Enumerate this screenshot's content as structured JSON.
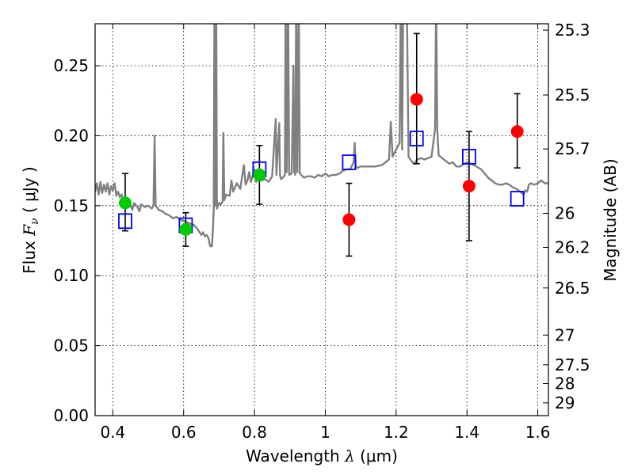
{
  "chart_data": {
    "type": "scatter",
    "title": "",
    "xlabel": {
      "prefix": "Wavelength  ",
      "symbol": "λ",
      "units": " (μm)"
    },
    "ylabel": {
      "prefix": "Flux  ",
      "symbol": "F",
      "subscript": "ν",
      "units": "  ( μJy )"
    },
    "y2label": "Magnitude (AB)",
    "xlim": [
      0.35,
      1.63
    ],
    "ylim": [
      0.0,
      0.28
    ],
    "grid": true,
    "x_ticks": [
      {
        "value": 0.4,
        "label": "0.4"
      },
      {
        "value": 0.6,
        "label": "0.6"
      },
      {
        "value": 0.8,
        "label": "0.8"
      },
      {
        "value": 1.0,
        "label": "1"
      },
      {
        "value": 1.2,
        "label": "1.2"
      },
      {
        "value": 1.4,
        "label": "1.4"
      },
      {
        "value": 1.6,
        "label": "1.6"
      }
    ],
    "y_ticks": [
      {
        "value": 0.0,
        "label": "0.00"
      },
      {
        "value": 0.05,
        "label": "0.05"
      },
      {
        "value": 0.1,
        "label": "0.10"
      },
      {
        "value": 0.15,
        "label": "0.15"
      },
      {
        "value": 0.2,
        "label": "0.20"
      },
      {
        "value": 0.25,
        "label": "0.25"
      }
    ],
    "mag_ticks": [
      {
        "value": 25.3,
        "label": "25.3"
      },
      {
        "value": 25.5,
        "label": "25.5"
      },
      {
        "value": 25.7,
        "label": "25.7"
      },
      {
        "value": 26.0,
        "label": "26"
      },
      {
        "value": 26.2,
        "label": "26.2"
      },
      {
        "value": 26.5,
        "label": "26.5"
      },
      {
        "value": 27.0,
        "label": "27"
      },
      {
        "value": 27.5,
        "label": "27.5"
      },
      {
        "value": 28.0,
        "label": "28"
      },
      {
        "value": 29.0,
        "label": "29"
      }
    ],
    "model_spectrum": {
      "color": "#808080",
      "points": [
        [
          0.35,
          0.16
        ],
        [
          0.355,
          0.166
        ],
        [
          0.36,
          0.158
        ],
        [
          0.365,
          0.167
        ],
        [
          0.37,
          0.159
        ],
        [
          0.375,
          0.165
        ],
        [
          0.38,
          0.16
        ],
        [
          0.385,
          0.166
        ],
        [
          0.39,
          0.158
        ],
        [
          0.395,
          0.164
        ],
        [
          0.4,
          0.161
        ],
        [
          0.405,
          0.166
        ],
        [
          0.41,
          0.157
        ],
        [
          0.415,
          0.16
        ],
        [
          0.42,
          0.156
        ],
        [
          0.425,
          0.158
        ],
        [
          0.43,
          0.153
        ],
        [
          0.44,
          0.151
        ],
        [
          0.45,
          0.15
        ],
        [
          0.455,
          0.147
        ],
        [
          0.46,
          0.152
        ],
        [
          0.47,
          0.149
        ],
        [
          0.475,
          0.146
        ],
        [
          0.48,
          0.151
        ],
        [
          0.49,
          0.149
        ],
        [
          0.5,
          0.15
        ],
        [
          0.51,
          0.148
        ],
        [
          0.515,
          0.15
        ],
        [
          0.518,
          0.2
        ],
        [
          0.521,
          0.15
        ],
        [
          0.53,
          0.147
        ],
        [
          0.54,
          0.146
        ],
        [
          0.55,
          0.144
        ],
        [
          0.56,
          0.143
        ],
        [
          0.57,
          0.141
        ],
        [
          0.58,
          0.142
        ],
        [
          0.59,
          0.14
        ],
        [
          0.6,
          0.139
        ],
        [
          0.61,
          0.138
        ],
        [
          0.62,
          0.137
        ],
        [
          0.63,
          0.136
        ],
        [
          0.64,
          0.133
        ],
        [
          0.65,
          0.129
        ],
        [
          0.655,
          0.131
        ],
        [
          0.66,
          0.128
        ],
        [
          0.665,
          0.129
        ],
        [
          0.67,
          0.127
        ],
        [
          0.675,
          0.121
        ],
        [
          0.68,
          0.121
        ],
        [
          0.683,
          0.135
        ],
        [
          0.685,
          0.147
        ],
        [
          0.687,
          0.3
        ],
        [
          0.689,
          0.15
        ],
        [
          0.692,
          0.3
        ],
        [
          0.694,
          0.148
        ],
        [
          0.7,
          0.152
        ],
        [
          0.705,
          0.151
        ],
        [
          0.71,
          0.153
        ],
        [
          0.712,
          0.202
        ],
        [
          0.715,
          0.154
        ],
        [
          0.72,
          0.158
        ],
        [
          0.73,
          0.157
        ],
        [
          0.735,
          0.168
        ],
        [
          0.74,
          0.16
        ],
        [
          0.75,
          0.166
        ],
        [
          0.76,
          0.162
        ],
        [
          0.77,
          0.179
        ],
        [
          0.775,
          0.165
        ],
        [
          0.78,
          0.168
        ],
        [
          0.785,
          0.174
        ],
        [
          0.79,
          0.167
        ],
        [
          0.8,
          0.176
        ],
        [
          0.805,
          0.167
        ],
        [
          0.81,
          0.171
        ],
        [
          0.82,
          0.168
        ],
        [
          0.83,
          0.169
        ],
        [
          0.84,
          0.167
        ],
        [
          0.85,
          0.171
        ],
        [
          0.86,
          0.212
        ],
        [
          0.862,
          0.172
        ],
        [
          0.87,
          0.209
        ],
        [
          0.872,
          0.172
        ],
        [
          0.875,
          0.169
        ],
        [
          0.88,
          0.17
        ],
        [
          0.886,
          0.172
        ],
        [
          0.888,
          0.3
        ],
        [
          0.891,
          0.174
        ],
        [
          0.895,
          0.3
        ],
        [
          0.898,
          0.172
        ],
        [
          0.905,
          0.173
        ],
        [
          0.91,
          0.25
        ],
        [
          0.912,
          0.175
        ],
        [
          0.915,
          0.172
        ],
        [
          0.918,
          0.3
        ],
        [
          0.921,
          0.174
        ],
        [
          0.925,
          0.3
        ],
        [
          0.928,
          0.173
        ],
        [
          0.94,
          0.17
        ],
        [
          0.95,
          0.171
        ],
        [
          0.96,
          0.171
        ],
        [
          0.97,
          0.17
        ],
        [
          0.98,
          0.172
        ],
        [
          0.99,
          0.171
        ],
        [
          1.0,
          0.173
        ],
        [
          1.01,
          0.171
        ],
        [
          1.02,
          0.172
        ],
        [
          1.03,
          0.172
        ],
        [
          1.04,
          0.173
        ],
        [
          1.05,
          0.175
        ],
        [
          1.06,
          0.176
        ],
        [
          1.07,
          0.176
        ],
        [
          1.08,
          0.181
        ],
        [
          1.083,
          0.195
        ],
        [
          1.086,
          0.178
        ],
        [
          1.09,
          0.177
        ],
        [
          1.1,
          0.178
        ],
        [
          1.12,
          0.178
        ],
        [
          1.14,
          0.178
        ],
        [
          1.16,
          0.179
        ],
        [
          1.17,
          0.181
        ],
        [
          1.18,
          0.183
        ],
        [
          1.185,
          0.21
        ],
        [
          1.19,
          0.185
        ],
        [
          1.2,
          0.19
        ],
        [
          1.21,
          0.195
        ],
        [
          1.213,
          0.3
        ],
        [
          1.217,
          0.19
        ],
        [
          1.22,
          0.3
        ],
        [
          1.23,
          0.3
        ],
        [
          1.235,
          0.185
        ],
        [
          1.24,
          0.183
        ],
        [
          1.25,
          0.18
        ],
        [
          1.26,
          0.183
        ],
        [
          1.27,
          0.184
        ],
        [
          1.28,
          0.183
        ],
        [
          1.29,
          0.184
        ],
        [
          1.3,
          0.185
        ],
        [
          1.31,
          0.205
        ],
        [
          1.313,
          0.3
        ],
        [
          1.316,
          0.205
        ],
        [
          1.32,
          0.186
        ],
        [
          1.33,
          0.184
        ],
        [
          1.34,
          0.182
        ],
        [
          1.35,
          0.18
        ],
        [
          1.36,
          0.181
        ],
        [
          1.37,
          0.178
        ],
        [
          1.38,
          0.178
        ],
        [
          1.4,
          0.181
        ],
        [
          1.42,
          0.179
        ],
        [
          1.44,
          0.176
        ],
        [
          1.45,
          0.173
        ],
        [
          1.46,
          0.17
        ],
        [
          1.47,
          0.168
        ],
        [
          1.48,
          0.166
        ],
        [
          1.49,
          0.165
        ],
        [
          1.5,
          0.165
        ],
        [
          1.51,
          0.166
        ],
        [
          1.52,
          0.165
        ],
        [
          1.53,
          0.163
        ],
        [
          1.54,
          0.162
        ],
        [
          1.55,
          0.16
        ],
        [
          1.56,
          0.158
        ],
        [
          1.565,
          0.161
        ],
        [
          1.57,
          0.16
        ],
        [
          1.575,
          0.165
        ],
        [
          1.58,
          0.166
        ],
        [
          1.59,
          0.165
        ],
        [
          1.6,
          0.166
        ],
        [
          1.61,
          0.168
        ],
        [
          1.62,
          0.166
        ],
        [
          1.63,
          0.166
        ]
      ]
    },
    "series": [
      {
        "marker": "square-open",
        "color": "#0000ff",
        "points": [
          {
            "x": 0.435,
            "y": 0.139
          },
          {
            "x": 0.606,
            "y": 0.136
          },
          {
            "x": 0.814,
            "y": 0.176
          },
          {
            "x": 1.067,
            "y": 0.181
          },
          {
            "x": 1.258,
            "y": 0.198
          },
          {
            "x": 1.406,
            "y": 0.185
          },
          {
            "x": 1.542,
            "y": 0.155
          }
        ]
      },
      {
        "marker": "circle-filled",
        "color": "#00cc00",
        "points": [
          {
            "x": 0.435,
            "y": 0.152,
            "yerr_low": 0.02,
            "yerr_high": 0.021
          },
          {
            "x": 0.606,
            "y": 0.133,
            "yerr_low": 0.012,
            "yerr_high": 0.012
          },
          {
            "x": 0.814,
            "y": 0.172,
            "yerr_low": 0.021,
            "yerr_high": 0.021
          }
        ]
      },
      {
        "marker": "circle-filled",
        "color": "#ff0000",
        "points": [
          {
            "x": 1.067,
            "y": 0.14,
            "yerr_low": 0.026,
            "yerr_high": 0.026
          },
          {
            "x": 1.258,
            "y": 0.226,
            "yerr_low": 0.046,
            "yerr_high": 0.047
          },
          {
            "x": 1.406,
            "y": 0.164,
            "yerr_low": 0.039,
            "yerr_high": 0.039
          },
          {
            "x": 1.542,
            "y": 0.203,
            "yerr_low": 0.026,
            "yerr_high": 0.027
          }
        ]
      }
    ]
  }
}
